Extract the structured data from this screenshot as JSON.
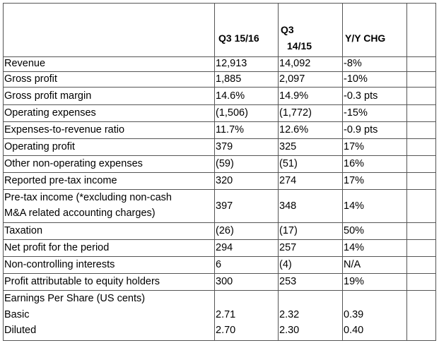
{
  "table": {
    "headers": {
      "current_period": "Q3 15/16",
      "prior_period_line1": "Q3",
      "prior_period_line2": "14/15",
      "change": "Y/Y CHG"
    },
    "rows": [
      {
        "label": "Revenue",
        "current": "12,913",
        "prior": "14,092",
        "change": "-8%"
      },
      {
        "label": "Gross profit",
        "current": "1,885",
        "prior": "2,097",
        "change": "-10%"
      },
      {
        "label": "Gross profit margin",
        "current": "14.6%",
        "prior": "14.9%",
        "change": "-0.3 pts"
      },
      {
        "label": "Operating expenses",
        "current": "(1,506)",
        "prior": "(1,772)",
        "change": "-15%"
      },
      {
        "label": "Expenses-to-revenue ratio",
        "current": "11.7%",
        "prior": "12.6%",
        "change": "-0.9 pts"
      },
      {
        "label": "Operating profit",
        "current": "379",
        "prior": "325",
        "change": "17%"
      },
      {
        "label": "Other non-operating expenses",
        "current": "(59)",
        "prior": "(51)",
        "change": "16%"
      },
      {
        "label": "Reported pre-tax income",
        "current": "320",
        "prior": "274",
        "change": "17%"
      },
      {
        "label_line1": "Pre-tax income (*excluding non-cash",
        "label_line2": "M&A related accounting charges)",
        "current": "397",
        "prior": "348",
        "change": "14%"
      },
      {
        "label": "Taxation",
        "current": "(26)",
        "prior": "(17)",
        "change": "50%"
      },
      {
        "label": "Net profit for the period",
        "current": "294",
        "prior": "257",
        "change": "14%"
      },
      {
        "label": "Non-controlling interests",
        "current": "6",
        "prior": "(4)",
        "change": "N/A"
      },
      {
        "label": "Profit attributable to equity holders",
        "current": "300",
        "prior": "253",
        "change": "19%"
      }
    ],
    "eps": {
      "title": "Earnings Per Share (US cents)",
      "basic": {
        "label": "Basic",
        "current": "2.71",
        "prior": "2.32",
        "change": "0.39"
      },
      "diluted": {
        "label": "Diluted",
        "current": "2.70",
        "prior": "2.30",
        "change": "0.40"
      }
    }
  }
}
